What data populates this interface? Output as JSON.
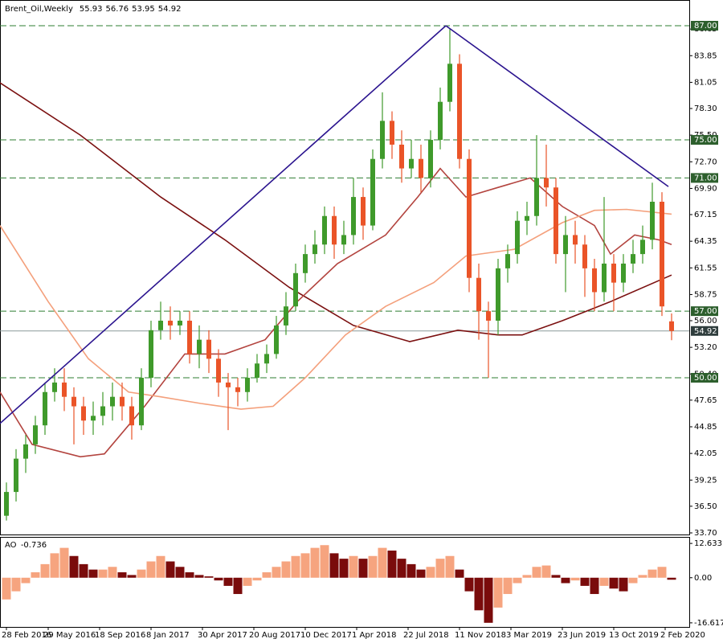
{
  "chart_data": [
    {
      "type": "candlestick",
      "title": "Brent_Oil,Weekly",
      "x": [
        0,
        3,
        6,
        9,
        12,
        15,
        18,
        21,
        24,
        27,
        30,
        33,
        36,
        39,
        42,
        45,
        48,
        51,
        54,
        57,
        60,
        63,
        66,
        69,
        72,
        75,
        78,
        81,
        84,
        87,
        90,
        93,
        96,
        99,
        102,
        105,
        108,
        111,
        114,
        117,
        120,
        123,
        126,
        129,
        132,
        135,
        138,
        141,
        144,
        147,
        150,
        153,
        156,
        159,
        162,
        165,
        168,
        171,
        174,
        177,
        180,
        183,
        186,
        189,
        192,
        195,
        198,
        201,
        204,
        207
      ],
      "open": [
        35.5,
        38,
        41.5,
        43,
        45,
        48.5,
        49.5,
        48,
        47,
        45.5,
        46,
        47,
        48,
        47,
        45,
        50,
        55,
        56,
        55.5,
        56,
        52.5,
        54,
        52,
        49.5,
        49,
        48.5,
        50,
        51.5,
        52.5,
        55.5,
        57.5,
        61,
        63,
        64,
        67,
        64,
        65,
        69,
        66,
        73,
        77,
        74.5,
        72,
        73,
        71,
        75,
        79,
        83,
        73,
        60.5,
        57,
        56,
        61.5,
        63,
        66.5,
        67,
        71,
        70,
        63,
        65,
        64,
        61.5,
        59,
        62,
        60,
        62,
        63,
        64.5,
        68.5,
        55.93
      ],
      "high": [
        39,
        42.5,
        44,
        46,
        49.5,
        51,
        51,
        49,
        48,
        47.5,
        48.5,
        49.5,
        49.5,
        48,
        51,
        56,
        58,
        57.5,
        57,
        57,
        55.5,
        55,
        53,
        50.5,
        50,
        51,
        52.5,
        53.5,
        56.5,
        59,
        62,
        64,
        65.5,
        68,
        68,
        66.5,
        71,
        70,
        74,
        80,
        78,
        76,
        75,
        74.5,
        76,
        80.5,
        86.7,
        84,
        74,
        62,
        58,
        62.5,
        64,
        67.5,
        68.5,
        75.5,
        74.5,
        71,
        67,
        66.5,
        65,
        62.5,
        69,
        63,
        63,
        64.5,
        66,
        70.5,
        69.5,
        56.76
      ],
      "low": [
        35,
        37,
        40,
        42,
        44,
        47.5,
        46.5,
        43,
        44,
        44,
        45,
        45.5,
        45.5,
        43.5,
        44.5,
        49,
        54,
        54,
        54.5,
        51.5,
        51,
        50.5,
        48,
        44.5,
        47,
        47.5,
        49.5,
        50.5,
        52,
        54.5,
        57,
        60,
        62,
        63,
        62.5,
        63,
        64,
        64.5,
        65.5,
        72,
        73,
        70.5,
        71,
        69.5,
        70,
        74,
        78,
        72,
        59,
        54,
        50,
        54.5,
        60,
        62,
        65,
        66,
        68,
        62,
        59,
        62,
        58.5,
        57,
        58,
        57,
        59,
        61,
        62,
        63.5,
        56.5,
        53.95
      ],
      "close": [
        38,
        41.5,
        43,
        45,
        48.5,
        49.5,
        48,
        47,
        45.5,
        46,
        47,
        48,
        47,
        45,
        50,
        55,
        56,
        55.5,
        56,
        52.5,
        54,
        52,
        49.5,
        49,
        48.5,
        50,
        51.5,
        52.5,
        55.5,
        57.5,
        61,
        63,
        64,
        67,
        64,
        65,
        69,
        66,
        73,
        77,
        74.5,
        72,
        73,
        71,
        75,
        79,
        83,
        73,
        60.5,
        57,
        56,
        61.5,
        63,
        66.5,
        67,
        71,
        70,
        63,
        65,
        64,
        61.5,
        59,
        62,
        60,
        62,
        63,
        64.5,
        68.5,
        57.5,
        54.92
      ],
      "up_color": "#3f9a2b",
      "down_color": "#ea5428",
      "xlim": [
        -2,
        212.5
      ],
      "xticks": [
        {
          "value": 0,
          "label": "28 Feb 2016"
        },
        {
          "value": 13,
          "label": "29 May 2016"
        },
        {
          "value": 29,
          "label": "18 Sep 2016"
        },
        {
          "value": 45,
          "label": "8 Jan 2017"
        },
        {
          "value": 61,
          "label": "30 Apr 2017"
        },
        {
          "value": 77,
          "label": "20 Aug 2017"
        },
        {
          "value": 93,
          "label": "10 Dec 2017"
        },
        {
          "value": 109,
          "label": "1 Apr 2018"
        },
        {
          "value": 125,
          "label": "22 Jul 2018"
        },
        {
          "value": 141,
          "label": "11 Nov 2018"
        },
        {
          "value": 157,
          "label": "3 Mar 2019"
        },
        {
          "value": 173,
          "label": "23 Jun 2019"
        },
        {
          "value": 189,
          "label": "13 Oct 2019"
        },
        {
          "value": 205,
          "label": "2 Feb 2020"
        }
      ],
      "ylim": [
        33.53,
        87.59
      ],
      "yticks": [
        {
          "value": 33.7,
          "label": "33.70"
        },
        {
          "value": 36.5,
          "label": "36.50"
        },
        39.25,
        42.05,
        44.85,
        47.65,
        {
          "value": 50.4,
          "label": "50.40"
        },
        {
          "value": 53.2,
          "label": "53.20"
        },
        {
          "value": 56,
          "label": "56.00"
        },
        58.75,
        61.55,
        64.35,
        67.15,
        {
          "value": 69.9,
          "label": "69.90"
        },
        {
          "value": 72.7,
          "label": "72.70"
        },
        {
          "value": 75.5,
          "label": "75.50"
        },
        {
          "value": 78.3,
          "label": "78.30"
        },
        81.05,
        83.85,
        86.65
      ],
      "moving_averages": [
        {
          "color": "#7b1010",
          "x": [
            -2,
            23,
            48,
            68,
            88,
            108,
            125.5,
            140.5,
            153,
            160.5,
            173,
            188,
            207
          ],
          "values": [
            81,
            75.5,
            69,
            64.5,
            59.5,
            55.5,
            53.8,
            55,
            54.5,
            54.5,
            56,
            58,
            60.8
          ]
        },
        {
          "color": "#b3443f",
          "x": [
            -2,
            8,
            23,
            30.5,
            43,
            55.5,
            68,
            80.5,
            90.5,
            103,
            118,
            128,
            135,
            143,
            153,
            163,
            173,
            183,
            188,
            195.5,
            203,
            207
          ],
          "values": [
            48.5,
            43,
            41.7,
            42,
            47,
            52.5,
            52.5,
            54,
            58,
            62,
            65,
            69,
            72,
            69,
            70,
            71,
            68,
            66,
            63,
            65,
            64.5,
            64
          ]
        },
        {
          "color": "#f4a07c",
          "x": [
            -2,
            13,
            25.5,
            38,
            48,
            60.5,
            73,
            83,
            93,
            105.5,
            118,
            133,
            143,
            158,
            173,
            183,
            193,
            207
          ],
          "values": [
            66,
            58,
            52,
            48.5,
            48,
            47.3,
            46.7,
            47,
            50,
            54.5,
            57.5,
            60,
            62.8,
            63.5,
            66.3,
            67.6,
            67.7,
            67.2
          ]
        }
      ],
      "trendlines": [
        {
          "color": "#2b148f",
          "x": [
            -2,
            136.75
          ],
          "values": [
            45.2,
            87
          ]
        },
        {
          "color": "#2b148f",
          "x": [
            136.75,
            206
          ],
          "values": [
            87,
            70.1
          ]
        }
      ],
      "levels": [
        {
          "value": 87,
          "label": "87.00"
        },
        {
          "value": 75,
          "label": "75.00"
        },
        {
          "value": 71,
          "label": "71.00"
        },
        {
          "value": 57,
          "label": "57.00"
        },
        {
          "value": 50,
          "label": "50.00"
        }
      ],
      "level_color": "#2e7d32",
      "level_box_color": "#2d5f2d",
      "current_color": "#2f3d3d"
    },
    {
      "type": "bar",
      "title": "AO",
      "x": [
        0,
        3,
        6,
        9,
        12,
        15,
        18,
        21,
        24,
        27,
        30,
        33,
        36,
        39,
        42,
        45,
        48,
        51,
        54,
        57,
        60,
        63,
        66,
        69,
        72,
        75,
        78,
        81,
        84,
        87,
        90,
        93,
        96,
        99,
        102,
        105,
        108,
        111,
        114,
        117,
        120,
        123,
        126,
        129,
        132,
        135,
        138,
        141,
        144,
        147,
        150,
        153,
        156,
        159,
        162,
        165,
        168,
        171,
        174,
        177,
        180,
        183,
        186,
        189,
        192,
        195,
        198,
        201,
        204,
        207
      ],
      "values": [
        -8,
        -5,
        -2,
        2,
        5,
        9,
        11,
        8,
        5,
        3,
        3,
        4,
        2,
        1,
        3,
        6,
        8,
        6,
        4,
        2,
        1,
        0.5,
        -1,
        -3,
        -6,
        -3,
        -1,
        2,
        4,
        6,
        8,
        9,
        11,
        12,
        9,
        7,
        8,
        7,
        8,
        11,
        10,
        7,
        5,
        3,
        4,
        7,
        8,
        3,
        -5,
        -12,
        -16.6,
        -11,
        -6,
        -2,
        1,
        4,
        4.5,
        1,
        -2,
        -1,
        -3,
        -6,
        -3,
        -4,
        -5,
        -2,
        1,
        3,
        4,
        -0.736
      ],
      "up_color": "#f6a47f",
      "down_color": "#7a0b0b",
      "ylim": [
        -18.125,
        14.44
      ],
      "yticks": [
        12.633,
        {
          "value": 0,
          "label": "0.00"
        },
        -16.617
      ]
    }
  ]
}
